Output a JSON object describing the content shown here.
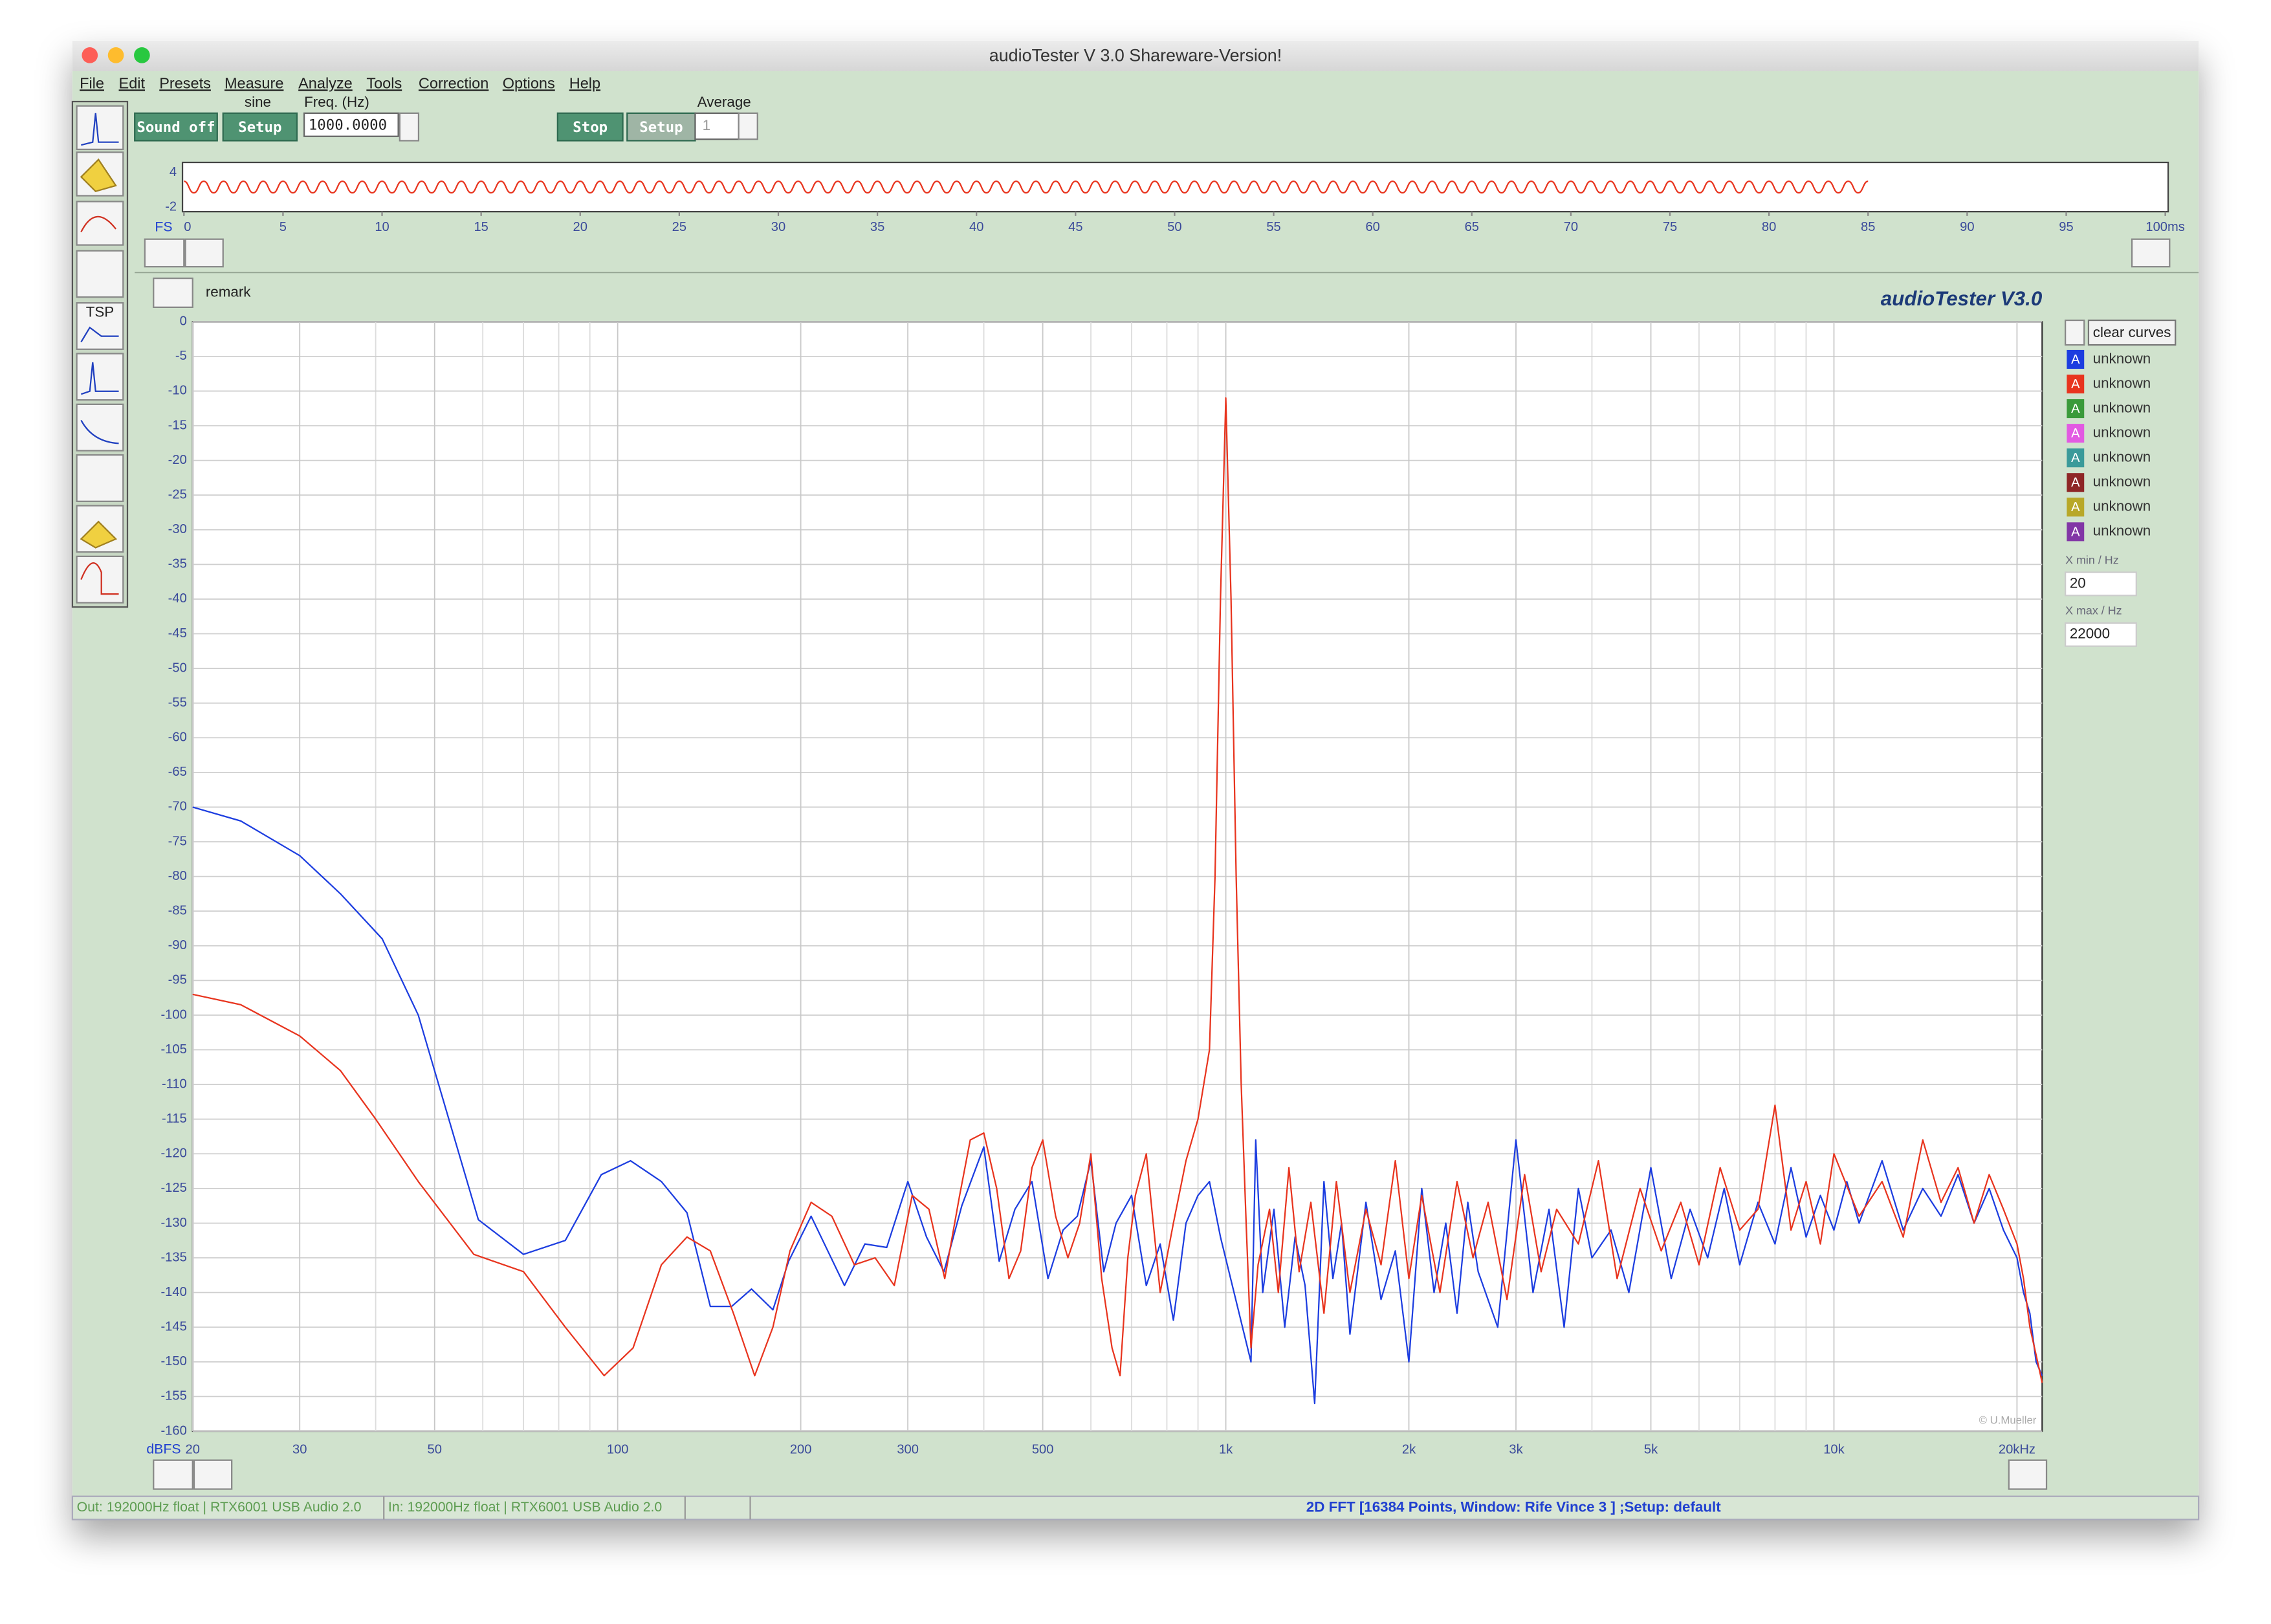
{
  "window": {
    "title": "audioTester  V 3.0 Shareware-Version!"
  },
  "menu": [
    "File",
    "Edit",
    "Presets",
    "Measure",
    "Analyze",
    "Tools",
    "Correction",
    "Options",
    "Help"
  ],
  "toolbar": {
    "sound_button": "Sound off",
    "setup_button": "Setup",
    "signal": "sine",
    "freq_label": "Freq. (Hz)",
    "freq_value": "1000.0000",
    "stop_button": "Stop",
    "setup_button_2": "Setup",
    "average_label": "Average",
    "average_value": "1"
  },
  "sidebar": {
    "tsp_label": "TSP"
  },
  "panel": {
    "remark": "remark",
    "brand": "audioTester  V3.0",
    "clear_button": "clear curves",
    "xmin_label": "X min / Hz",
    "xmin_value": "20",
    "xmax_label": "X max / Hz",
    "xmax_value": "22000",
    "legend": [
      {
        "badge": "A",
        "name": "unknown",
        "color": "#1c3de0"
      },
      {
        "badge": "A",
        "name": "unknown",
        "color": "#e8341e"
      },
      {
        "badge": "A",
        "name": "unknown",
        "color": "#3a9a3a"
      },
      {
        "badge": "A",
        "name": "unknown",
        "color": "#e25ae2"
      },
      {
        "badge": "A",
        "name": "unknown",
        "color": "#3a9a9a"
      },
      {
        "badge": "A",
        "name": "unknown",
        "color": "#8e2626"
      },
      {
        "badge": "A",
        "name": "unknown",
        "color": "#b8a828"
      },
      {
        "badge": "A",
        "name": "unknown",
        "color": "#8236a6"
      }
    ]
  },
  "status": {
    "out": "Out: 192000Hz float  | RTX6001 USB Audio 2.0",
    "in": "In: 192000Hz float  | RTX6001 USB Audio 2.0",
    "info": "2D FFT [16384 Points, Window: Rife Vince 3 ] ;Setup:  default"
  },
  "chart_data": [
    {
      "type": "line",
      "ylabel": "FS",
      "xlim": [
        0,
        100
      ],
      "xticks": [
        0,
        5,
        10,
        15,
        20,
        25,
        30,
        35,
        40,
        45,
        50,
        55,
        60,
        65,
        70,
        75,
        80,
        85,
        90,
        95,
        {
          "value": 100,
          "label": "100ms"
        }
      ],
      "ylim": [
        -2,
        4
      ],
      "yticks": [
        -2,
        4
      ],
      "grid": false,
      "series": [
        {
          "color": "#e8341e",
          "x": [
            0,
            0.5,
            1,
            1.5,
            2,
            2.5,
            3,
            3.5,
            4,
            4.5,
            5,
            5.5,
            6,
            6.5,
            7,
            7.5,
            8,
            8.5,
            9,
            9.5,
            10,
            10.5,
            11,
            11.5,
            12,
            12.5,
            13,
            13.5,
            14,
            14.5,
            15,
            15.5,
            16,
            16.5,
            17,
            17.5,
            18,
            18.5,
            19,
            19.5,
            20,
            20.5,
            21,
            21.5,
            22,
            22.5,
            23,
            23.5,
            24,
            24.5,
            25,
            25.5,
            26,
            26.5,
            27,
            27.5,
            28,
            28.5,
            29,
            29.5,
            30,
            30.5,
            31,
            31.5,
            32,
            32.5,
            33,
            33.5,
            34,
            34.5,
            35,
            35.5,
            36,
            36.5,
            37,
            37.5,
            38,
            38.5,
            39,
            39.5,
            40,
            40.5,
            41,
            41.5,
            42,
            42.5,
            43,
            43.5,
            44,
            44.5,
            45,
            45.5,
            46,
            46.5,
            47,
            47.5,
            48,
            48.5,
            49,
            49.5,
            50,
            50.5,
            51,
            51.5,
            52,
            52.5,
            53,
            53.5,
            54,
            54.5,
            55,
            55.5,
            56,
            56.5,
            57,
            57.5,
            58,
            58.5,
            59,
            59.5,
            60,
            60.5,
            61,
            61.5,
            62,
            62.5,
            63,
            63.5,
            64,
            64.5,
            65,
            65.5,
            66,
            66.5,
            67,
            67.5,
            68,
            68.5,
            69,
            69.5,
            70,
            70.5,
            71,
            71.5,
            72,
            72.5,
            73,
            73.5,
            74,
            74.5,
            75,
            75.5,
            76,
            76.5,
            77,
            77.5,
            78,
            78.5,
            79,
            79.5,
            80,
            80.5,
            81,
            81.5,
            82,
            82.5,
            83,
            83.5,
            84,
            84.5,
            85
          ],
          "values": [
            2.5,
            0.5,
            2.5,
            0.5,
            2.5,
            0.5,
            2.5,
            0.5,
            2.5,
            0.5,
            2.5,
            0.5,
            2.5,
            0.5,
            2.5,
            0.5,
            2.5,
            0.5,
            2.5,
            0.5,
            2.5,
            0.5,
            2.5,
            0.5,
            2.5,
            0.5,
            2.5,
            0.5,
            2.5,
            0.5,
            2.5,
            0.5,
            2.5,
            0.5,
            2.5,
            0.5,
            2.5,
            0.5,
            2.5,
            0.5,
            2.5,
            0.5,
            2.5,
            0.5,
            2.5,
            0.5,
            2.5,
            0.5,
            2.5,
            0.5,
            2.5,
            0.5,
            2.5,
            0.5,
            2.5,
            0.5,
            2.5,
            0.5,
            2.5,
            0.5,
            2.5,
            0.5,
            2.5,
            0.5,
            2.5,
            0.5,
            2.5,
            0.5,
            2.5,
            0.5,
            2.5,
            0.5,
            2.5,
            0.5,
            2.5,
            0.5,
            2.5,
            0.5,
            2.5,
            0.5,
            2.5,
            0.5,
            2.5,
            0.5,
            2.5,
            0.5,
            2.5,
            0.5,
            2.5,
            0.5,
            2.5,
            0.5,
            2.5,
            0.5,
            2.5,
            0.5,
            2.5,
            0.5,
            2.5,
            0.5,
            2.5,
            0.5,
            2.5,
            0.5,
            2.5,
            0.5,
            2.5,
            0.5,
            2.5,
            0.5,
            2.5,
            0.5,
            2.5,
            0.5,
            2.5,
            0.5,
            2.5,
            0.5,
            2.5,
            0.5,
            2.5,
            0.5,
            2.5,
            0.5,
            2.5,
            0.5,
            2.5,
            0.5,
            2.5,
            0.5,
            2.5,
            0.5,
            2.5,
            0.5,
            2.5,
            0.5,
            2.5,
            0.5,
            2.5,
            0.5,
            2.5,
            0.5,
            2.5,
            0.5,
            2.5,
            0.5,
            2.5,
            0.5,
            2.5,
            0.5,
            2.5,
            0.5,
            2.5,
            0.5,
            2.5,
            0.5,
            2.5,
            0.5,
            2.5,
            0.5,
            2.5,
            0.5,
            2.5,
            0.5,
            2.5,
            0.5,
            2.5,
            0.5,
            2.5,
            0.5,
            2.5
          ]
        }
      ]
    },
    {
      "type": "line",
      "xscale": "log",
      "ylabel": "dBFS",
      "annotation": "© U.Mueller",
      "xlim": [
        20,
        22000
      ],
      "xticks": [
        20,
        30,
        50,
        100,
        200,
        300,
        500,
        {
          "value": 1000,
          "label": "1k"
        },
        {
          "value": 2000,
          "label": "2k"
        },
        {
          "value": 3000,
          "label": "3k"
        },
        {
          "value": 5000,
          "label": "5k"
        },
        {
          "value": 10000,
          "label": "10k"
        },
        {
          "value": 20000,
          "label": "20kHz"
        }
      ],
      "xminor": [
        40,
        60,
        70,
        80,
        90,
        400,
        600,
        700,
        800,
        900,
        4000,
        6000,
        7000,
        8000,
        9000
      ],
      "ylim": [
        -160,
        0
      ],
      "yticks": [
        0,
        -5,
        -10,
        -15,
        -20,
        -25,
        -30,
        -35,
        -40,
        -45,
        -50,
        -55,
        -60,
        -65,
        -70,
        -75,
        -80,
        -85,
        -90,
        -95,
        -100,
        -105,
        -110,
        -115,
        -120,
        -125,
        -130,
        -135,
        -140,
        -145,
        -150,
        -155,
        -160
      ],
      "grid": true,
      "series": [
        {
          "color": "#1c3de0",
          "x": [
            20,
            24,
            30,
            35,
            41,
            47,
            59,
            70,
            82,
            94,
            105,
            118,
            130,
            142,
            154,
            166,
            180,
            191,
            208,
            236,
            255,
            277,
            300,
            322,
            344,
            368,
            400,
            424,
            450,
            480,
            510,
            540,
            570,
            600,
            630,
            660,
            700,
            740,
            780,
            820,
            860,
            900,
            940,
            980,
            1100,
            1120,
            1150,
            1200,
            1250,
            1300,
            1350,
            1400,
            1450,
            1500,
            1550,
            1600,
            1700,
            1800,
            1900,
            2000,
            2100,
            2200,
            2300,
            2400,
            2500,
            2600,
            2800,
            3000,
            3200,
            3400,
            3600,
            3800,
            4000,
            4300,
            4600,
            5000,
            5400,
            5800,
            6200,
            6600,
            7000,
            7500,
            8000,
            8500,
            9000,
            9500,
            10000,
            10500,
            11000,
            12000,
            13000,
            14000,
            15000,
            16000,
            17000,
            18000,
            19000,
            20000,
            20500,
            21000,
            21500,
            22000
          ],
          "values": [
            -70,
            -72,
            -77,
            -82.5,
            -89,
            -100,
            -129.5,
            -134.5,
            -132.5,
            -123,
            -121,
            -124,
            -128.5,
            -142,
            -142,
            -139.5,
            -142.5,
            -135.5,
            -129,
            -139,
            -133,
            -133.5,
            -124,
            -132,
            -137,
            -127.5,
            -119,
            -135.5,
            -128,
            -124,
            -138,
            -131,
            -129,
            -121,
            -137,
            -130,
            -126,
            -139,
            -133,
            -144,
            -130,
            -126,
            -124,
            -132,
            -150,
            -118,
            -140,
            -128,
            -145,
            -132,
            -139,
            -156,
            -124,
            -138,
            -130,
            -146,
            -127,
            -141,
            -134,
            -150,
            -125,
            -140,
            -130,
            -143,
            -127,
            -137,
            -145,
            -118,
            -140,
            -128,
            -145,
            -125,
            -135,
            -131,
            -140,
            -122,
            -138,
            -128,
            -135,
            -125,
            -136,
            -127,
            -133,
            -122,
            -132,
            -126,
            -131,
            -124,
            -130,
            -121,
            -131,
            -125,
            -129,
            -123,
            -130,
            -125,
            -131,
            -135,
            -140,
            -143,
            -150,
            -152
          ]
        },
        {
          "color": "#e8341e",
          "x": [
            20,
            24,
            30,
            35,
            40,
            47,
            58,
            70,
            82,
            95,
            106,
            118,
            130,
            142,
            155,
            168,
            180,
            192,
            208,
            225,
            245,
            265,
            285,
            305,
            325,
            345,
            365,
            380,
            400,
            420,
            440,
            460,
            480,
            500,
            525,
            550,
            575,
            600,
            625,
            650,
            670,
            690,
            710,
            740,
            780,
            820,
            860,
            900,
            940,
            960,
            980,
            1000,
            1020,
            1040,
            1060,
            1080,
            1100,
            1130,
            1180,
            1220,
            1270,
            1320,
            1380,
            1450,
            1520,
            1600,
            1700,
            1800,
            1900,
            2000,
            2100,
            2250,
            2400,
            2550,
            2700,
            2900,
            3100,
            3300,
            3500,
            3800,
            4100,
            4400,
            4800,
            5200,
            5600,
            6000,
            6500,
            7000,
            7500,
            8000,
            8500,
            9000,
            9500,
            10000,
            11000,
            12000,
            13000,
            14000,
            15000,
            16000,
            17000,
            18000,
            19000,
            20000,
            20500,
            21000,
            21500,
            22000
          ],
          "values": [
            -97,
            -98.5,
            -103,
            -108,
            -115,
            -124,
            -134.5,
            -137,
            -145,
            -152,
            -148,
            -136,
            -132,
            -134,
            -143,
            -152,
            -145,
            -134,
            -127,
            -129,
            -136,
            -135,
            -139,
            -126,
            -128,
            -138,
            -126,
            -118,
            -117,
            -125,
            -138,
            -134,
            -122,
            -118,
            -129,
            -135,
            -130,
            -120,
            -138,
            -148,
            -152,
            -135,
            -126,
            -120,
            -140,
            -130,
            -121,
            -115,
            -105,
            -80,
            -40,
            -11,
            -40,
            -80,
            -110,
            -130,
            -148,
            -136,
            -128,
            -140,
            -122,
            -137,
            -127,
            -143,
            -124,
            -140,
            -128,
            -136,
            -121,
            -138,
            -126,
            -140,
            -124,
            -135,
            -127,
            -141,
            -123,
            -137,
            -128,
            -133,
            -121,
            -138,
            -125,
            -134,
            -127,
            -136,
            -122,
            -131,
            -128,
            -113,
            -131,
            -124,
            -133,
            -120,
            -129,
            -124,
            -132,
            -118,
            -127,
            -122,
            -130,
            -123,
            -128,
            -133,
            -138,
            -145,
            -149,
            -153
          ]
        }
      ]
    }
  ]
}
